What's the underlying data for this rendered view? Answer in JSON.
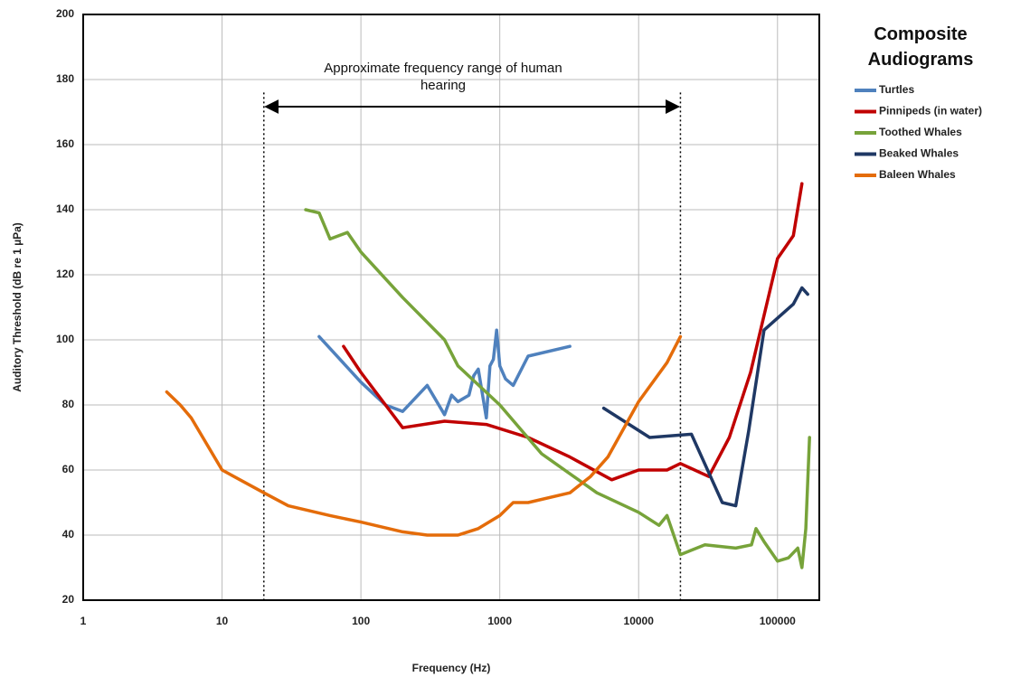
{
  "chart_data": {
    "type": "line",
    "title": "Composite Audiograms",
    "x_label": "Frequency (Hz)",
    "y_label": "Auditory Threshold (dB re 1 µPa)",
    "annotation": "Approximate frequency range of human hearing",
    "reference_lines": [
      20,
      20000
    ],
    "x_scale": "log",
    "xlim": [
      1,
      200000
    ],
    "xticks": [
      1,
      10,
      100,
      1000,
      10000,
      100000
    ],
    "ylim": [
      20,
      200
    ],
    "yticks": [
      20,
      40,
      60,
      80,
      100,
      120,
      140,
      160,
      180,
      200
    ],
    "grid": true,
    "legend": "right",
    "series": [
      {
        "name": "Turtles",
        "color": "#4f81bd",
        "x": [
          50,
          100,
          150,
          200,
          300,
          400,
          450,
          500,
          600,
          650,
          700,
          800,
          850,
          900,
          950,
          1000,
          1100,
          1250,
          1600,
          3200
        ],
        "values": [
          101,
          87,
          80,
          78,
          86,
          77,
          83,
          81,
          83,
          89,
          91,
          76,
          92,
          94,
          103,
          92,
          88,
          86,
          95,
          98
        ]
      },
      {
        "name": "Pinnipeds (in water)",
        "color": "#c00000",
        "x": [
          75,
          100,
          200,
          400,
          800,
          1600,
          3200,
          6400,
          10000,
          16000,
          20000,
          32000,
          45000,
          64000,
          100000,
          130000,
          150000
        ],
        "values": [
          98,
          90,
          73,
          75,
          74,
          70,
          64,
          57,
          60,
          60,
          62,
          58,
          70,
          90,
          125,
          132,
          148
        ]
      },
      {
        "name": "Toothed Whales",
        "color": "#77a33a",
        "x": [
          40,
          50,
          60,
          80,
          100,
          200,
          400,
          500,
          1000,
          2000,
          5000,
          10000,
          14000,
          16000,
          20000,
          30000,
          50000,
          65000,
          70000,
          80000,
          100000,
          120000,
          140000,
          150000,
          160000,
          170000
        ],
        "values": [
          140,
          139,
          131,
          133,
          127,
          113,
          100,
          92,
          80,
          65,
          53,
          47,
          43,
          46,
          34,
          37,
          36,
          37,
          42,
          38,
          32,
          33,
          36,
          30,
          42,
          70
        ]
      },
      {
        "name": "Beaked Whales",
        "color": "#1f3864",
        "x": [
          5600,
          12000,
          24000,
          40000,
          50000,
          62000,
          80000,
          130000,
          150000,
          165000
        ],
        "values": [
          79,
          70,
          71,
          50,
          49,
          72,
          103,
          111,
          116,
          114
        ]
      },
      {
        "name": "Baleen Whales",
        "color": "#e46c0a",
        "x": [
          4,
          5,
          6,
          10,
          20,
          30,
          60,
          100,
          200,
          300,
          500,
          700,
          1000,
          1250,
          1600,
          3200,
          4500,
          6000,
          10000,
          16000,
          20000
        ],
        "values": [
          84,
          80,
          76,
          60,
          53,
          49,
          46,
          44,
          41,
          40,
          40,
          42,
          46,
          50,
          50,
          53,
          58,
          64,
          81,
          93,
          101
        ]
      }
    ]
  }
}
